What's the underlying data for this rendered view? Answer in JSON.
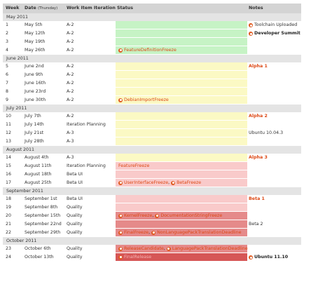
{
  "colors": {
    "header_bg": "#d4d4d4",
    "month_bg": "#e4e4e4",
    "green": "#c6f3c5",
    "yellow": "#fbf9c4",
    "pink": "#f9caca",
    "red": "#e58a8a",
    "dark_red": "#d65656",
    "accent": "#dd4814"
  },
  "header": {
    "week": "Week",
    "date": "Date",
    "date_sub": "(Thursday)",
    "iteration": "Work Item Iteration",
    "status": "Status",
    "notes": "Notes"
  },
  "sections": [
    {
      "month": "May 2011",
      "rows": [
        {
          "week": "1",
          "date": "May 5th",
          "iteration": "A-2",
          "color": "#c6f3c5",
          "events": [],
          "note": "Toolchain Uploaded",
          "note_style": "plain",
          "note_icon": true
        },
        {
          "week": "2",
          "date": "May 12th",
          "iteration": "A-2",
          "color": "#c6f3c5",
          "events": [],
          "note": "Developer Summit",
          "note_style": "dark",
          "note_icon": true
        },
        {
          "week": "3",
          "date": "May 19th",
          "iteration": "A-2",
          "color": "#c6f3c5",
          "events": [],
          "note": "",
          "note_style": "plain",
          "note_icon": false
        },
        {
          "week": "4",
          "date": "May 26th",
          "iteration": "A-2",
          "color": "#c6f3c5",
          "events": [
            "FeatureDefinitionFreeze"
          ],
          "note": "",
          "note_style": "plain",
          "note_icon": false
        }
      ]
    },
    {
      "month": "June 2011",
      "rows": [
        {
          "week": "5",
          "date": "June 2nd",
          "iteration": "A-2",
          "color": "#fbf9c4",
          "events": [],
          "note": "Alpha 1",
          "note_style": "orange",
          "note_icon": false
        },
        {
          "week": "6",
          "date": "June 9th",
          "iteration": "A-2",
          "color": "#fbf9c4",
          "events": [],
          "note": "",
          "note_style": "plain",
          "note_icon": false
        },
        {
          "week": "7",
          "date": "June 16th",
          "iteration": "A-2",
          "color": "#fbf9c4",
          "events": [],
          "note": "",
          "note_style": "plain",
          "note_icon": false
        },
        {
          "week": "8",
          "date": "June 23rd",
          "iteration": "A-2",
          "color": "#fbf9c4",
          "events": [],
          "note": "",
          "note_style": "plain",
          "note_icon": false
        },
        {
          "week": "9",
          "date": "June 30th",
          "iteration": "A-2",
          "color": "#fbf9c4",
          "events": [
            "DebianImportFreeze"
          ],
          "note": "",
          "note_style": "plain",
          "note_icon": false
        }
      ]
    },
    {
      "month": "July 2011",
      "rows": [
        {
          "week": "10",
          "date": "July 7th",
          "iteration": "A-2",
          "color": "#fbf9c4",
          "events": [],
          "note": "Alpha 2",
          "note_style": "orange",
          "note_icon": false
        },
        {
          "week": "11",
          "date": "July 14th",
          "iteration": "Iteration Planning",
          "color": "#fbf9c4",
          "events": [],
          "note": "",
          "note_style": "plain",
          "note_icon": false
        },
        {
          "week": "12",
          "date": "July 21st",
          "iteration": "A-3",
          "color": "#fbf9c4",
          "events": [],
          "note": "Ubuntu 10.04.3",
          "note_style": "plain",
          "note_icon": false
        },
        {
          "week": "13",
          "date": "July 28th",
          "iteration": "A-3",
          "color": "#fbf9c4",
          "events": [],
          "note": "",
          "note_style": "plain",
          "note_icon": false
        }
      ]
    },
    {
      "month": "August 2011",
      "rows": [
        {
          "week": "14",
          "date": "August 4th",
          "iteration": "A-3",
          "color": "#fbf9c4",
          "events": [],
          "note": "Alpha 3",
          "note_style": "orange",
          "note_icon": false
        },
        {
          "week": "15",
          "date": "August 11th",
          "iteration": "Iteration Planning",
          "color": "#f9caca",
          "events": [
            "FeatureFreeze"
          ],
          "events_icon": false,
          "note": "",
          "note_style": "plain",
          "note_icon": false
        },
        {
          "week": "16",
          "date": "August 18th",
          "iteration": "Beta UI",
          "color": "#f9caca",
          "events": [],
          "note": "",
          "note_style": "plain",
          "note_icon": false
        },
        {
          "week": "17",
          "date": "August 25th",
          "iteration": "Beta UI",
          "color": "#f9caca",
          "events": [
            "UserInterfaceFreeze",
            "BetaFreeze"
          ],
          "note": "",
          "note_style": "plain",
          "note_icon": false
        }
      ]
    },
    {
      "month": "September 2011",
      "rows": [
        {
          "week": "18",
          "date": "September 1st",
          "iteration": "Beta UI",
          "color": "#f9caca",
          "events": [],
          "note": "Beta 1",
          "note_style": "orange",
          "note_icon": false
        },
        {
          "week": "19",
          "date": "September 8th",
          "iteration": "Quality",
          "color": "#f9caca",
          "events": [],
          "note": "",
          "note_style": "plain",
          "note_icon": false
        },
        {
          "week": "20",
          "date": "September 15th",
          "iteration": "Quality",
          "color": "#e58a8a",
          "events": [
            "KernelFreeze",
            "DocumentationStringFreeze"
          ],
          "note": "",
          "note_style": "plain",
          "note_icon": false
        },
        {
          "week": "21",
          "date": "September 22nd",
          "iteration": "Quality",
          "color": "#e58a8a",
          "events": [],
          "note": "Beta 2",
          "note_style": "plain",
          "note_icon": false
        },
        {
          "week": "22",
          "date": "September 29th",
          "iteration": "Quality",
          "color": "#e58a8a",
          "events": [
            "FinalFreeze",
            "NonLanguagePackTranslationDeadline"
          ],
          "note": "",
          "note_style": "plain",
          "note_icon": false
        }
      ]
    },
    {
      "month": "October 2011",
      "rows": [
        {
          "week": "23",
          "date": "October 6th",
          "iteration": "Quality",
          "color": "#e58a8a",
          "events": [
            "ReleaseCandidate",
            "LanguagePackTranslationDeadline"
          ],
          "note": "",
          "note_style": "plain",
          "note_icon": false
        },
        {
          "week": "24",
          "date": "October 13th",
          "iteration": "Quality",
          "color": "#d65656",
          "events": [
            "FinalRelease"
          ],
          "note": "Ubuntu 11.10",
          "note_style": "dark",
          "note_icon": true
        }
      ]
    }
  ]
}
